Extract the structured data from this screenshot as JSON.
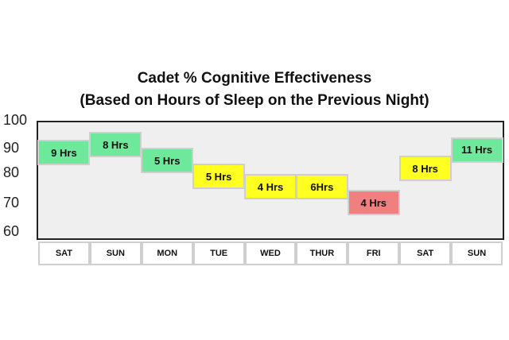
{
  "chart_data": {
    "type": "bar",
    "title": "Cadet % Cognitive Effectiveness",
    "subtitle": "(Based on Hours of Sleep on the Previous Night)",
    "categories": [
      "SAT",
      "SUN",
      "MON",
      "TUE",
      "WED",
      "THUR",
      "FRI",
      "SAT",
      "SUN"
    ],
    "values": [
      91,
      94,
      88,
      82,
      78,
      78,
      72,
      85,
      92
    ],
    "labels": [
      "9 Hrs",
      "8 Hrs",
      "5 Hrs",
      "5 Hrs",
      "4 Hrs",
      "6Hrs",
      "4 Hrs",
      "8 Hrs",
      "11 Hrs"
    ],
    "colors": [
      "#6ee89a",
      "#6ee89a",
      "#6ee89a",
      "#ffff22",
      "#ffff22",
      "#ffff22",
      "#f08080",
      "#ffff22",
      "#6ee89a"
    ],
    "yticks": [
      "100",
      "90",
      "80",
      "70",
      "60"
    ],
    "ylim": [
      55,
      100
    ],
    "grid": false,
    "xlabel": "",
    "ylabel": ""
  }
}
